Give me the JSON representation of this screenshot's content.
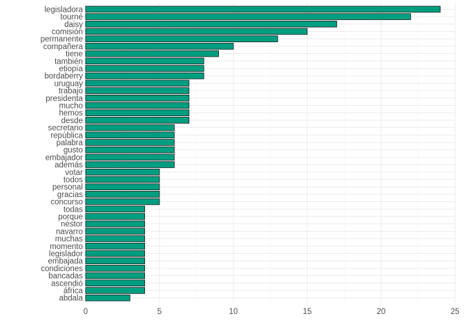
{
  "chart_data": {
    "type": "bar",
    "orientation": "horizontal",
    "title": "",
    "xlabel": "",
    "ylabel": "",
    "xlim": [
      0,
      25
    ],
    "xticks": [
      0,
      5,
      10,
      15,
      20,
      25
    ],
    "grid": true,
    "bar_color": "#009E80",
    "bar_edge_color": "#1a1a1a",
    "categories": [
      "legisladora",
      "tourné",
      "daisy",
      "comisión",
      "permanente",
      "compañera",
      "tiene",
      "también",
      "etiopía",
      "bordaberry",
      "uruguay",
      "trabajo",
      "presidenta",
      "mucho",
      "hemos",
      "desde",
      "secretario",
      "república",
      "palabra",
      "gusto",
      "embajador",
      "además",
      "votar",
      "todos",
      "personal",
      "gracias",
      "concurso",
      "todas",
      "porque",
      "néstor",
      "navarro",
      "muchas",
      "momento",
      "legislador",
      "embajada",
      "condiciones",
      "bancadas",
      "ascendió",
      "áfrica",
      "abdala"
    ],
    "values": [
      24,
      22,
      17,
      15,
      13,
      10,
      9,
      8,
      8,
      8,
      7,
      7,
      7,
      7,
      7,
      7,
      6,
      6,
      6,
      6,
      6,
      6,
      5,
      5,
      5,
      5,
      5,
      4,
      4,
      4,
      4,
      4,
      4,
      4,
      4,
      4,
      4,
      4,
      4,
      3
    ]
  }
}
